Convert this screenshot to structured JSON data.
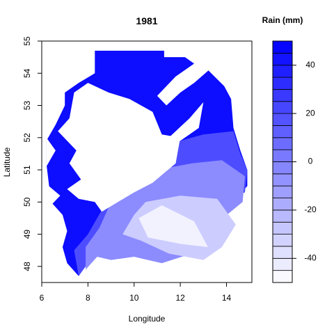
{
  "chart_data": {
    "type": "heatmap",
    "title": "1981",
    "xlabel": "Longitude",
    "ylabel": "Latitude",
    "legend_title": "Rain (mm)",
    "xlim": [
      6.0,
      15.1
    ],
    "ylim": [
      47.5,
      55.0
    ],
    "x_ticks": [
      6,
      8,
      10,
      12,
      14
    ],
    "y_ticks": [
      48,
      49,
      50,
      51,
      52,
      53,
      54,
      55
    ],
    "grid": false,
    "legend_placement": "right",
    "colorbar": {
      "range": [
        -50,
        50
      ],
      "ticks": [
        -40,
        -20,
        0,
        20,
        40
      ],
      "levels": [
        -50,
        -45,
        -40,
        -35,
        -30,
        -25,
        -20,
        -15,
        -10,
        -5,
        0,
        5,
        10,
        15,
        20,
        25,
        30,
        35,
        40,
        45,
        50
      ],
      "low_color": "#ffffff",
      "high_color": "#0000ff"
    },
    "regions": [
      {
        "name": "",
        "value": 45,
        "polygon": [
          [
            8.3,
            54.7
          ],
          [
            11.3,
            54.7
          ],
          [
            11.3,
            54.5
          ],
          [
            12.2,
            54.5
          ],
          [
            12.6,
            54.3
          ],
          [
            13.2,
            54.1
          ],
          [
            13.9,
            53.6
          ],
          [
            14.2,
            53.2
          ],
          [
            14.3,
            52.3
          ],
          [
            14.6,
            51.6
          ],
          [
            14.9,
            51.0
          ],
          [
            14.9,
            50.5
          ],
          [
            14.3,
            50.0
          ],
          [
            13.1,
            50.3
          ],
          [
            12.3,
            50.0
          ],
          [
            11.1,
            50.2
          ],
          [
            10.0,
            50.0
          ],
          [
            9.2,
            49.4
          ],
          [
            8.5,
            49.0
          ],
          [
            8.1,
            48.4
          ],
          [
            7.6,
            47.7
          ],
          [
            7.1,
            48.1
          ],
          [
            6.9,
            48.6
          ],
          [
            7.1,
            49.1
          ],
          [
            6.9,
            49.6
          ],
          [
            6.4,
            50.0
          ],
          [
            6.3,
            50.6
          ],
          [
            6.2,
            51.2
          ],
          [
            6.2,
            51.9
          ],
          [
            6.6,
            52.4
          ],
          [
            7.0,
            53.0
          ],
          [
            7.0,
            53.4
          ],
          [
            7.6,
            53.7
          ],
          [
            8.3,
            54.0
          ]
        ]
      },
      {
        "name": "",
        "value": 20,
        "polygon": [
          [
            10.0,
            51.5
          ],
          [
            12.0,
            51.9
          ],
          [
            13.0,
            52.1
          ],
          [
            14.3,
            52.2
          ],
          [
            14.6,
            51.5
          ],
          [
            14.9,
            51.0
          ],
          [
            14.8,
            50.3
          ],
          [
            13.6,
            50.0
          ],
          [
            12.4,
            49.6
          ],
          [
            11.0,
            49.8
          ],
          [
            9.8,
            49.4
          ],
          [
            8.7,
            49.1
          ],
          [
            8.2,
            48.3
          ],
          [
            7.6,
            47.7
          ],
          [
            7.4,
            48.5
          ],
          [
            8.0,
            49.0
          ],
          [
            8.8,
            50.0
          ],
          [
            9.5,
            50.8
          ]
        ]
      },
      {
        "name": "",
        "value": -5,
        "polygon": [
          [
            9.5,
            50.6
          ],
          [
            11.0,
            51.0
          ],
          [
            12.5,
            51.2
          ],
          [
            13.8,
            51.3
          ],
          [
            14.8,
            50.8
          ],
          [
            14.7,
            50.0
          ],
          [
            13.5,
            49.3
          ],
          [
            12.5,
            48.4
          ],
          [
            11.2,
            48.1
          ],
          [
            10.0,
            48.3
          ],
          [
            9.0,
            48.2
          ],
          [
            8.4,
            48.3
          ],
          [
            7.9,
            47.9
          ],
          [
            7.9,
            48.6
          ],
          [
            8.5,
            49.2
          ],
          [
            9.0,
            50.0
          ]
        ]
      },
      {
        "name": "",
        "value": -30,
        "polygon": [
          [
            10.5,
            50.0
          ],
          [
            12.0,
            50.2
          ],
          [
            13.6,
            50.1
          ],
          [
            14.4,
            49.3
          ],
          [
            13.8,
            48.6
          ],
          [
            13.0,
            48.2
          ],
          [
            11.5,
            48.4
          ],
          [
            10.3,
            48.8
          ],
          [
            9.5,
            49.0
          ],
          [
            10.0,
            49.6
          ]
        ]
      },
      {
        "name": "",
        "value": -45,
        "polygon": [
          [
            10.2,
            49.5
          ],
          [
            11.2,
            49.9
          ],
          [
            12.6,
            49.4
          ],
          [
            13.2,
            48.6
          ],
          [
            12.0,
            48.7
          ],
          [
            10.6,
            48.9
          ]
        ]
      }
    ],
    "no_data_regions": [
      {
        "polygon": [
          [
            7.4,
            53.4
          ],
          [
            7.2,
            52.6
          ],
          [
            6.7,
            52.2
          ],
          [
            7.5,
            51.6
          ],
          [
            7.2,
            51.2
          ],
          [
            7.7,
            50.7
          ],
          [
            7.1,
            50.4
          ],
          [
            7.6,
            50.1
          ],
          [
            8.3,
            50.0
          ],
          [
            8.6,
            49.7
          ],
          [
            9.3,
            50.0
          ],
          [
            10.0,
            50.3
          ],
          [
            10.8,
            50.6
          ],
          [
            11.8,
            51.2
          ],
          [
            12.0,
            52.0
          ],
          [
            11.2,
            52.1
          ],
          [
            10.8,
            52.8
          ],
          [
            9.8,
            53.2
          ],
          [
            8.9,
            53.4
          ],
          [
            8.0,
            53.7
          ]
        ]
      },
      {
        "polygon": [
          [
            11.8,
            53.9
          ],
          [
            12.8,
            54.4
          ],
          [
            13.4,
            54.2
          ],
          [
            12.6,
            53.7
          ],
          [
            12.0,
            53.4
          ],
          [
            11.4,
            53.0
          ],
          [
            11.0,
            53.3
          ]
        ]
      },
      {
        "polygon": [
          [
            11.2,
            51.8
          ],
          [
            12.4,
            52.6
          ],
          [
            13.0,
            53.1
          ],
          [
            12.8,
            52.3
          ],
          [
            12.0,
            51.9
          ]
        ]
      },
      {
        "polygon": [
          [
            6.2,
            51.1
          ],
          [
            6.6,
            51.6
          ],
          [
            6.2,
            52.0
          ]
        ]
      },
      {
        "polygon": [
          [
            6.3,
            50.5
          ],
          [
            6.8,
            50.2
          ],
          [
            6.4,
            49.9
          ]
        ]
      }
    ]
  }
}
